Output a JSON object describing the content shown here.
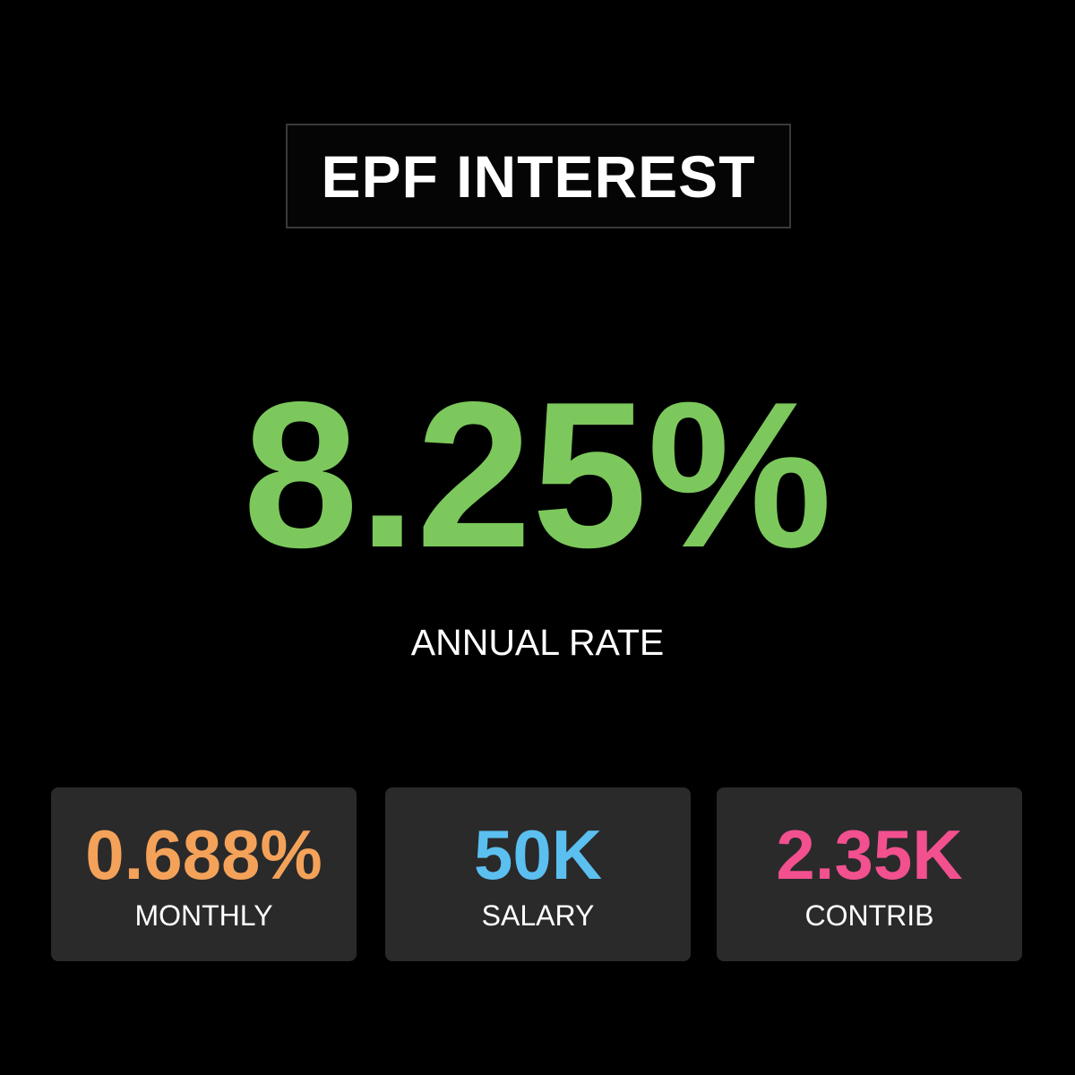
{
  "header": {
    "title": "EPF INTEREST"
  },
  "main": {
    "value": "8.25%",
    "label": "ANNUAL RATE"
  },
  "cards": [
    {
      "value": "0.688%",
      "label": "MONTHLY"
    },
    {
      "value": "50K",
      "label": "SALARY"
    },
    {
      "value": "2.35K",
      "label": "CONTRIB"
    }
  ]
}
